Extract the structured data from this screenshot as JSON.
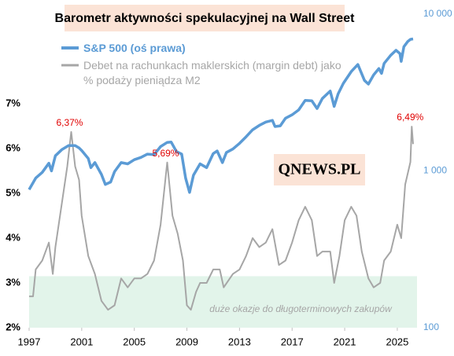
{
  "chart_data": {
    "type": "line",
    "title": "Barometr aktywności spekulacyjnej na Wall Street",
    "watermark": "QNEWS.PL",
    "xlim": [
      1997,
      2026.5
    ],
    "xticks": [
      1997,
      2001,
      2005,
      2009,
      2013,
      2017,
      2021,
      2025
    ],
    "ylim": [
      2,
      9
    ],
    "yticks": [
      {
        "value": 2,
        "label": "2%"
      },
      {
        "value": 3,
        "label": "3%"
      },
      {
        "value": 4,
        "label": "4%"
      },
      {
        "value": 5,
        "label": "5%"
      },
      {
        "value": 6,
        "label": "6%"
      },
      {
        "value": 7,
        "label": "7%"
      }
    ],
    "y2lim": [
      100,
      10000
    ],
    "y2scale": "log",
    "y2ticks": [
      100,
      {
        "value": 1000,
        "label": "1 000"
      },
      {
        "value": 10000,
        "label": "10 000"
      }
    ],
    "y2color": "#5b9bd5",
    "grid": false,
    "shaded_band": {
      "y_from": 2,
      "y_to": 3.15,
      "color": "#e2f4ea",
      "label": "duże okazje do długoterminowych zakupów"
    },
    "series": [
      {
        "name": "S&P 500 (oś prawa)",
        "color": "#5b9bd5",
        "axis": "y2",
        "x": [
          1997.0,
          1997.5,
          1998.0,
          1998.5,
          1998.7,
          1999.0,
          1999.5,
          2000.0,
          2000.5,
          2000.8,
          2001.0,
          2001.5,
          2001.7,
          2002.0,
          2002.5,
          2002.8,
          2003.2,
          2003.5,
          2004.0,
          2004.5,
          2005.0,
          2005.5,
          2006.0,
          2006.5,
          2007.0,
          2007.5,
          2007.8,
          2008.2,
          2008.6,
          2008.9,
          2009.2,
          2009.5,
          2010.0,
          2010.5,
          2011.0,
          2011.3,
          2011.7,
          2012.0,
          2012.5,
          2013.0,
          2013.5,
          2014.0,
          2014.5,
          2015.0,
          2015.5,
          2015.7,
          2016.1,
          2016.5,
          2017.0,
          2017.5,
          2018.0,
          2018.5,
          2018.9,
          2019.3,
          2019.9,
          2020.2,
          2020.5,
          2020.9,
          2021.5,
          2022.0,
          2022.5,
          2022.8,
          2023.2,
          2023.6,
          2023.8,
          2024.0,
          2024.5,
          2024.9,
          2025.2,
          2025.3,
          2025.5,
          2025.8,
          2026.0,
          2026.2
        ],
        "values": [
          760,
          900,
          980,
          1120,
          1000,
          1250,
          1370,
          1450,
          1450,
          1400,
          1350,
          1200,
          1050,
          1130,
          950,
          820,
          850,
          990,
          1130,
          1110,
          1180,
          1220,
          1280,
          1270,
          1430,
          1520,
          1530,
          1330,
          1280,
          900,
          730,
          940,
          1110,
          1050,
          1290,
          1340,
          1130,
          1310,
          1380,
          1500,
          1650,
          1830,
          1950,
          2050,
          2100,
          1920,
          1940,
          2170,
          2280,
          2450,
          2820,
          2800,
          2500,
          2900,
          3230,
          2580,
          3100,
          3620,
          4300,
          4770,
          3780,
          3580,
          4100,
          4500,
          4190,
          4850,
          5470,
          5880,
          5600,
          5000,
          6200,
          6700,
          6900,
          6950
        ]
      },
      {
        "name": "Debet na rachunkach maklerskich (margin debt) jako % podaży pieniądza M2",
        "color": "#a6a6a6",
        "x": [
          1997.0,
          1997.3,
          1997.5,
          1998.0,
          1998.5,
          1998.8,
          1999.0,
          1999.5,
          1999.9,
          2000.2,
          2000.5,
          2000.8,
          2001.0,
          2001.5,
          2002.0,
          2002.5,
          2003.0,
          2003.5,
          2004.0,
          2004.5,
          2005.0,
          2005.5,
          2006.0,
          2006.5,
          2007.0,
          2007.5,
          2007.9,
          2008.3,
          2008.7,
          2009.0,
          2009.3,
          2009.7,
          2010.0,
          2010.5,
          2011.0,
          2011.5,
          2011.8,
          2012.5,
          2013.0,
          2013.5,
          2014.0,
          2014.5,
          2015.0,
          2015.5,
          2016.0,
          2016.5,
          2017.0,
          2017.5,
          2018.0,
          2018.5,
          2018.9,
          2019.3,
          2019.9,
          2020.2,
          2020.6,
          2021.0,
          2021.5,
          2021.9,
          2022.3,
          2022.8,
          2023.2,
          2023.7,
          2024.0,
          2024.5,
          2025.0,
          2025.3,
          2025.6,
          2026.0,
          2026.1,
          2026.2
        ],
        "values": [
          2.7,
          2.7,
          3.3,
          3.5,
          3.9,
          3.2,
          3.8,
          4.8,
          5.6,
          6.37,
          5.6,
          5.3,
          4.5,
          3.6,
          3.2,
          2.6,
          2.4,
          2.5,
          3.1,
          2.9,
          3.1,
          3.1,
          3.2,
          3.5,
          4.3,
          5.69,
          4.5,
          4.1,
          3.5,
          2.5,
          2.4,
          2.8,
          3.0,
          3.0,
          3.3,
          3.3,
          2.9,
          3.2,
          3.3,
          3.6,
          4.0,
          3.8,
          3.9,
          4.2,
          3.4,
          3.5,
          3.9,
          4.4,
          4.7,
          4.4,
          3.6,
          3.7,
          3.7,
          3.0,
          3.6,
          4.4,
          4.7,
          4.5,
          3.7,
          3.1,
          2.9,
          3.0,
          3.5,
          3.7,
          4.3,
          4.0,
          5.2,
          5.7,
          6.49,
          6.1
        ]
      }
    ],
    "annotations": [
      {
        "text": "6,37%",
        "x": 2000.2,
        "y": 6.37,
        "color": "#e00000"
      },
      {
        "text": "5,69%",
        "x": 2007.5,
        "y": 5.69,
        "color": "#e00000"
      },
      {
        "text": "6,49%",
        "x": 2026.1,
        "y": 6.49,
        "color": "#e00000"
      }
    ]
  }
}
